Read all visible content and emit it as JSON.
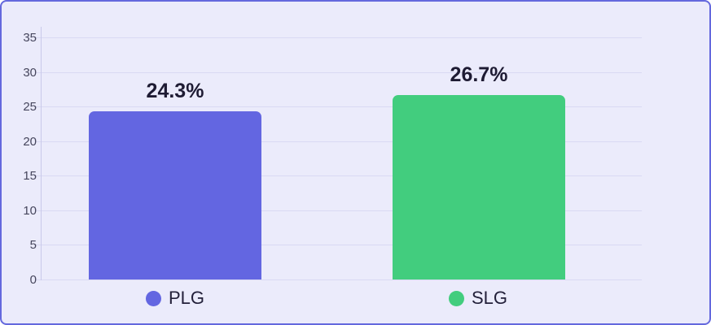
{
  "chart_data": {
    "type": "bar",
    "categories": [
      "PLG",
      "SLG"
    ],
    "values": [
      24.3,
      26.7
    ],
    "value_labels": [
      "24.3%",
      "26.7%"
    ],
    "series_colors": [
      "#6366e1",
      "#42cd7e"
    ],
    "title": "",
    "xlabel": "",
    "ylabel": "",
    "y_ticks": [
      0,
      5,
      10,
      15,
      20,
      25,
      30,
      35
    ],
    "ylim": [
      0,
      35
    ],
    "grid": true,
    "legend_position": "bottom",
    "legend": [
      {
        "label": "PLG",
        "color": "#6366e1"
      },
      {
        "label": "SLG",
        "color": "#42cd7e"
      }
    ]
  },
  "colors": {
    "card_background": "#ebebfb",
    "card_border": "#6468dd",
    "gridline": "#d9d9f3",
    "axis_line": "#c9c9ea",
    "tick_label": "#45455c",
    "value_label": "#1e1b33",
    "bar_plg": "#6366e1",
    "bar_slg": "#42cd7e"
  }
}
